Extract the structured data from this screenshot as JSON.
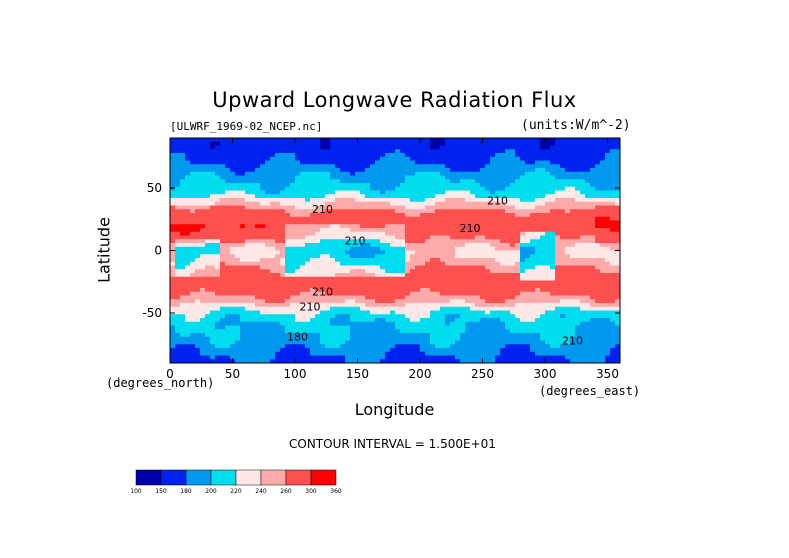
{
  "chart_data": {
    "type": "heatmap",
    "title": "Upward Longwave Radiation Flux",
    "subtitle": "[ULWRF_1969-02_NCEP.nc]",
    "units": "(units:W/m^-2)",
    "xlabel": "Longitude",
    "ylabel": "Latitude",
    "x_unit_label": "(degrees_east)",
    "y_unit_label": "(degrees_north)",
    "xlim": [
      0,
      360
    ],
    "ylim": [
      -90,
      90
    ],
    "x_ticks": [
      0,
      50,
      100,
      150,
      200,
      250,
      300,
      350
    ],
    "y_ticks": [
      -50,
      0,
      50
    ],
    "contour_interval_text": "CONTOUR INTERVAL = 1.500E+01",
    "contour_labels": [
      {
        "text": "210",
        "lon": 122,
        "lat": 30
      },
      {
        "text": "210",
        "lon": 262,
        "lat": 37
      },
      {
        "text": "210",
        "lon": 240,
        "lat": 15
      },
      {
        "text": "210",
        "lon": 148,
        "lat": 5
      },
      {
        "text": "210",
        "lon": 122,
        "lat": -36
      },
      {
        "text": "210",
        "lon": 112,
        "lat": -48
      },
      {
        "text": "180",
        "lon": 102,
        "lat": -72
      },
      {
        "text": "210",
        "lon": 322,
        "lat": -75
      }
    ],
    "colorbar": {
      "ticks": [
        100,
        150,
        180,
        200,
        220,
        240,
        260,
        300,
        360
      ],
      "colors": [
        "#0000aa",
        "#0022ee",
        "#0099ee",
        "#00ddee",
        "#ffe8e8",
        "#ffaaaa",
        "#ff5050",
        "#ff0000"
      ]
    },
    "zonal_profile": [
      {
        "lat": 90,
        "value": 160
      },
      {
        "lat": 75,
        "value": 170
      },
      {
        "lat": 60,
        "value": 195
      },
      {
        "lat": 45,
        "value": 215
      },
      {
        "lat": 30,
        "value": 265
      },
      {
        "lat": 20,
        "value": 290
      },
      {
        "lat": 10,
        "value": 265
      },
      {
        "lat": 0,
        "value": 235
      },
      {
        "lat": -10,
        "value": 250
      },
      {
        "lat": -20,
        "value": 275
      },
      {
        "lat": -30,
        "value": 280
      },
      {
        "lat": -40,
        "value": 250
      },
      {
        "lat": -50,
        "value": 215
      },
      {
        "lat": -60,
        "value": 200
      },
      {
        "lat": -70,
        "value": 195
      },
      {
        "lat": -80,
        "value": 185
      },
      {
        "lat": -90,
        "value": 175
      }
    ]
  }
}
